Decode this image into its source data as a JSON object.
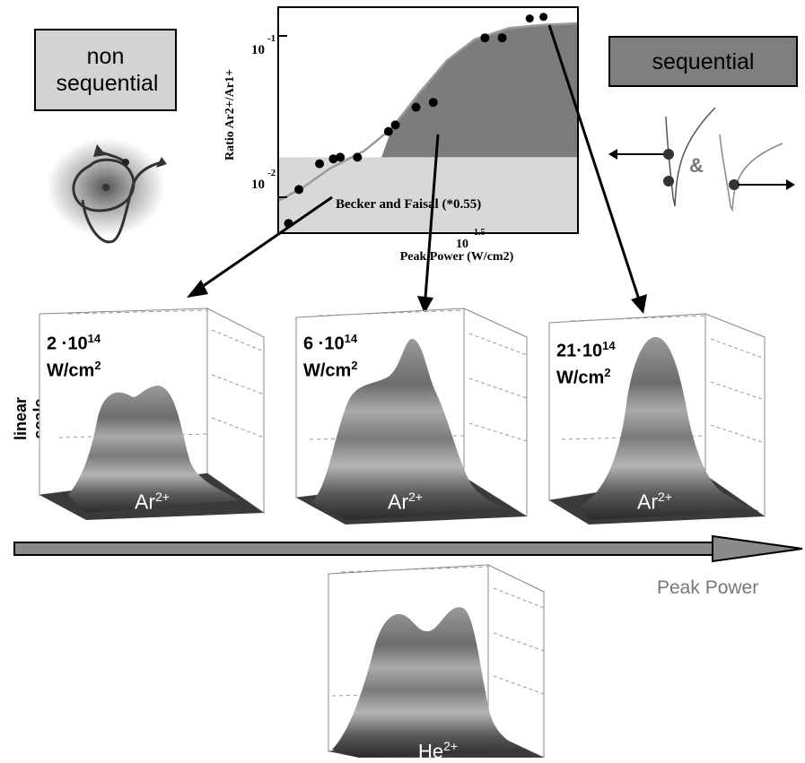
{
  "labels": {
    "non_sequential": "non sequential",
    "sequential": "sequential",
    "ampersand": "&",
    "linear_scale": "linear scale",
    "peak_power": "Peak Power"
  },
  "colors": {
    "nonseq_box": "#d3d3d3",
    "seq_box": "#7f7f7f",
    "arrow": "#000000"
  },
  "chart_data": {
    "type": "scatter",
    "ylabel": "Ratio Ar2+/Ar1+",
    "xlabel": "Peak Power (W/cm2)",
    "x_tick_labels": [
      "10",
      "1.5"
    ],
    "y_tick_labels": [
      {
        "base": "10",
        "exp": "-1"
      },
      {
        "base": "10",
        "exp": "-2"
      }
    ],
    "annotation": "Becker and Faisal (*0.55)",
    "points_log": [
      {
        "x": 14.28,
        "y": -2.19
      },
      {
        "x": 14.31,
        "y": -1.98
      },
      {
        "x": 14.37,
        "y": -1.82
      },
      {
        "x": 14.41,
        "y": -1.79
      },
      {
        "x": 14.43,
        "y": -1.78
      },
      {
        "x": 14.48,
        "y": -1.78
      },
      {
        "x": 14.57,
        "y": -1.62
      },
      {
        "x": 14.59,
        "y": -1.58
      },
      {
        "x": 14.65,
        "y": -1.47
      },
      {
        "x": 14.7,
        "y": -1.44
      },
      {
        "x": 14.85,
        "y": -1.04
      },
      {
        "x": 14.9,
        "y": -1.04
      },
      {
        "x": 14.98,
        "y": -0.92
      },
      {
        "x": 15.02,
        "y": -0.91
      }
    ],
    "curve_log": [
      {
        "x": 14.25,
        "y": -2.05
      },
      {
        "x": 14.32,
        "y": -1.97
      },
      {
        "x": 14.4,
        "y": -1.85
      },
      {
        "x": 14.5,
        "y": -1.74
      },
      {
        "x": 14.58,
        "y": -1.6
      },
      {
        "x": 14.66,
        "y": -1.38
      },
      {
        "x": 14.74,
        "y": -1.18
      },
      {
        "x": 14.82,
        "y": -1.05
      },
      {
        "x": 14.92,
        "y": -0.98
      },
      {
        "x": 15.02,
        "y": -0.96
      },
      {
        "x": 15.12,
        "y": -0.95
      }
    ],
    "xlim": [
      14.25,
      15.12
    ],
    "ylim": [
      -2.25,
      -0.85
    ]
  },
  "panels": [
    {
      "intensity": "2 ·10",
      "exp": "14",
      "unit": "W/cm",
      "unit_exp": "2",
      "ion": "Ar",
      "charge": "2+"
    },
    {
      "intensity": "6 ·10",
      "exp": "14",
      "unit": "W/cm",
      "unit_exp": "2",
      "ion": "Ar",
      "charge": "2+"
    },
    {
      "intensity": "21·10",
      "exp": "14",
      "unit": "W/cm",
      "unit_exp": "2",
      "ion": "Ar",
      "charge": "2+"
    },
    {
      "intensity": "",
      "exp": "",
      "unit": "",
      "unit_exp": "",
      "ion": "He",
      "charge": "2+"
    }
  ]
}
